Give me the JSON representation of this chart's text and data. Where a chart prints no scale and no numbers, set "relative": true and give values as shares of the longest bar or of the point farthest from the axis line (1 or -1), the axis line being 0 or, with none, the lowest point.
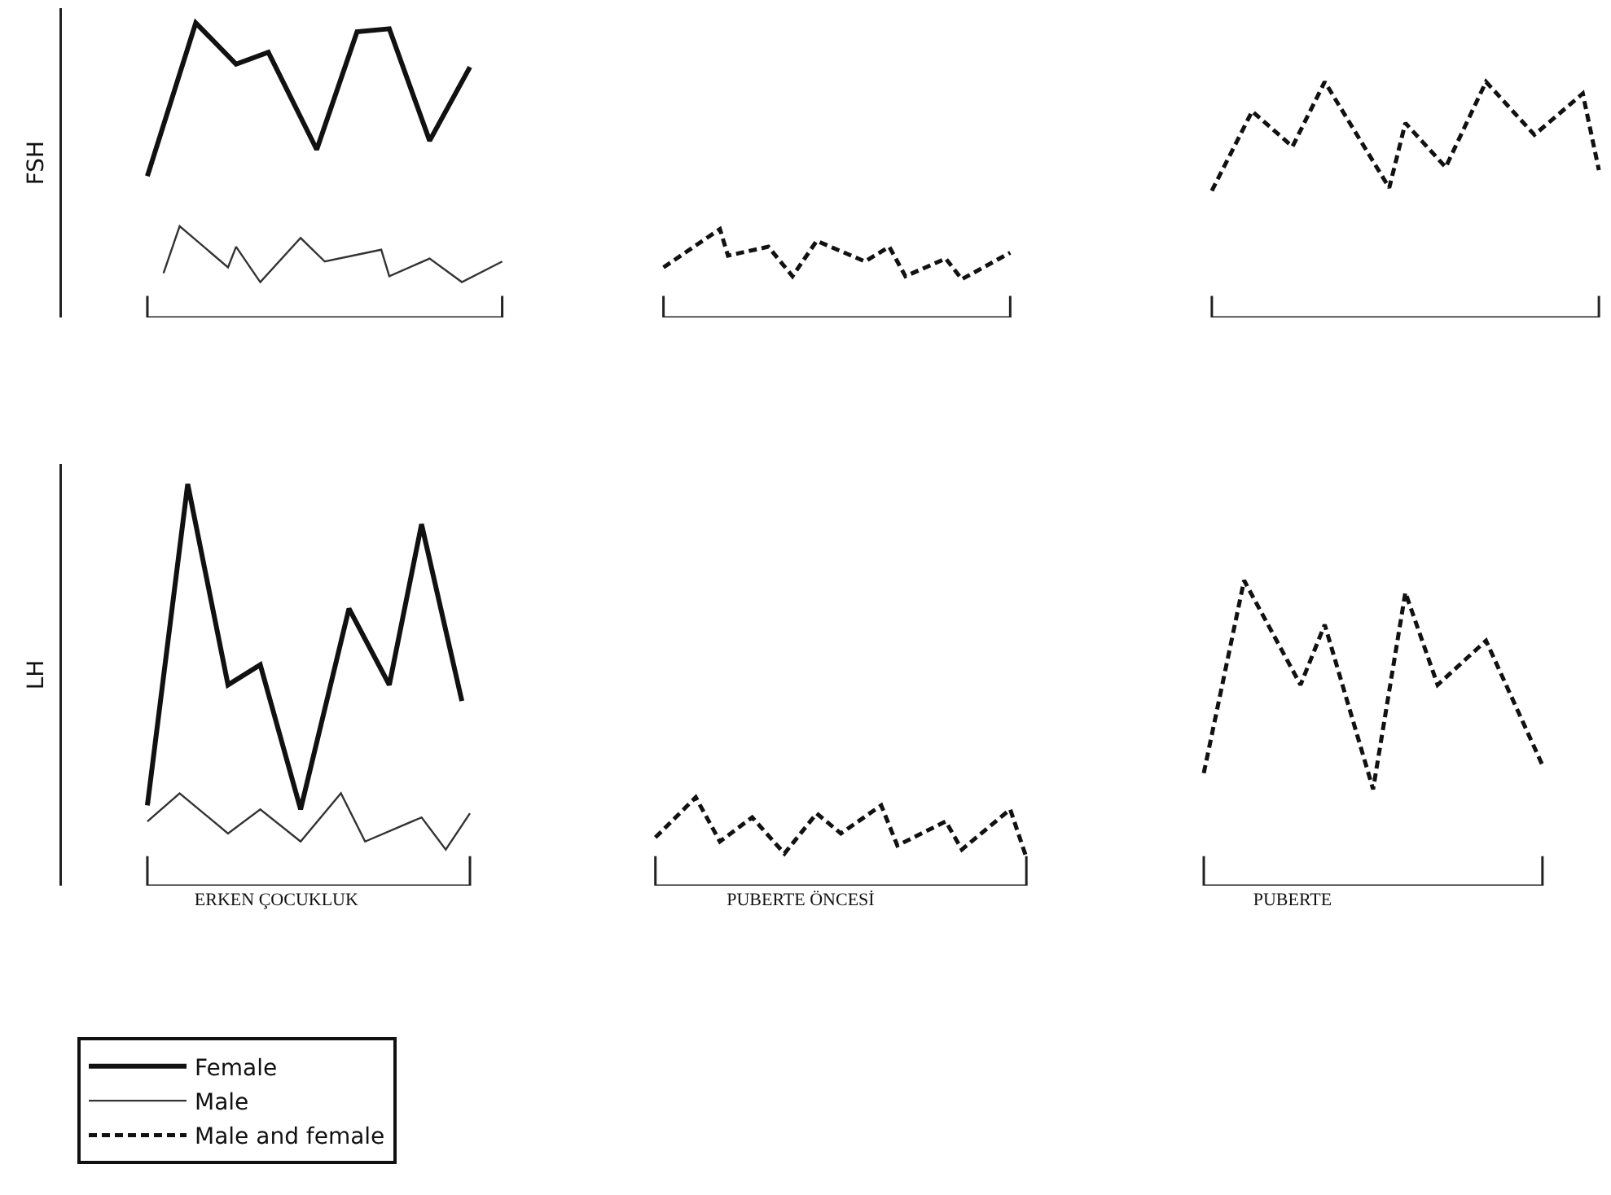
{
  "chart_data": [
    {
      "type": "line",
      "relative": true,
      "ylabel": "FSH",
      "tick_labels": false,
      "legend": false,
      "categories": [
        null,
        null,
        null,
        null,
        null,
        null,
        null,
        null,
        null,
        null,
        null,
        null,
        null,
        null,
        null,
        null,
        null,
        null,
        null,
        null,
        null,
        null,
        null,
        null,
        null,
        null,
        null,
        null,
        null,
        null,
        null,
        null,
        null,
        null,
        null,
        null,
        null,
        null,
        null,
        null,
        null,
        null,
        null,
        null,
        null,
        null,
        null,
        null,
        null,
        null,
        null,
        null,
        null,
        null,
        null,
        null,
        null,
        null,
        null,
        null,
        null,
        null,
        null,
        null,
        null,
        null,
        null,
        null,
        null,
        null,
        null,
        null,
        null,
        null,
        null,
        null,
        null,
        null,
        null,
        null,
        null,
        null,
        null,
        null,
        null,
        null,
        null,
        null,
        null,
        null,
        null,
        null,
        null,
        null,
        null,
        null,
        null,
        null,
        null,
        null,
        null,
        null,
        null,
        null,
        null,
        null,
        null,
        null,
        null,
        null,
        null,
        null,
        null,
        null,
        null,
        null,
        null,
        null,
        null,
        null,
        null,
        null,
        null,
        null,
        null,
        null,
        null,
        null,
        null,
        null,
        null,
        null,
        null,
        null,
        null,
        null,
        null,
        null,
        null,
        null,
        null,
        null,
        null,
        null,
        null,
        null,
        null,
        null,
        null,
        null,
        null,
        null,
        null,
        null,
        null,
        null,
        null,
        null,
        null,
        null,
        null,
        null,
        null,
        null,
        null,
        null,
        null,
        null,
        null,
        null,
        null,
        null,
        null,
        null,
        null,
        null,
        null,
        null,
        null,
        null,
        null,
        null,
        null,
        null,
        null,
        null,
        null,
        null,
        null,
        null,
        null,
        null
      ],
      "series": [
        {
          "color": "#111111",
          "line_style": "solid",
          "values": [
            null,
            null,
            null,
            null,
            null,
            null,
            null,
            null,
            null,
            null,
            0.48,
            null,
            null,
            null,
            null,
            null,
            1.0,
            null,
            null,
            null,
            null,
            0.86,
            null,
            null,
            null,
            0.9,
            null,
            null,
            null,
            null,
            null,
            0.57,
            null,
            null,
            null,
            null,
            0.97,
            null,
            null,
            null,
            0.98,
            null,
            null,
            null,
            null,
            0.6,
            null,
            null,
            null,
            null,
            0.85,
            null,
            null,
            null,
            null,
            null,
            null,
            null,
            null,
            null,
            null,
            null,
            null,
            null,
            null,
            null,
            null,
            null,
            null,
            null,
            null,
            null,
            null,
            null,
            null,
            null,
            null,
            null,
            null,
            null,
            null,
            null,
            null,
            null,
            null,
            null,
            null,
            null,
            null,
            null,
            null,
            null,
            null,
            null,
            null,
            null,
            null,
            null,
            null,
            null,
            null,
            null,
            null,
            null,
            null,
            null,
            null,
            null,
            null,
            null,
            null,
            null,
            null,
            null,
            null,
            null,
            null,
            null,
            null,
            null,
            null,
            null,
            null,
            null,
            null,
            null,
            null,
            null,
            null,
            null,
            null,
            null,
            null,
            null,
            null,
            null,
            null,
            null,
            null,
            null,
            null,
            null,
            null,
            null,
            null,
            null,
            null,
            null,
            null,
            null,
            null,
            null,
            null,
            null,
            null,
            null,
            null,
            null,
            null,
            null,
            null,
            null,
            null,
            null,
            null,
            null,
            null,
            null,
            null,
            null,
            null,
            null,
            null,
            null,
            null,
            null,
            null,
            null,
            null,
            null,
            null,
            null,
            null,
            null,
            null,
            null,
            null,
            null,
            null,
            null,
            null,
            null
          ]
        },
        {
          "color": "#333333",
          "line_style": "solid",
          "values": [
            null,
            null,
            null,
            null,
            null,
            null,
            null,
            null,
            null,
            null,
            null,
            null,
            0.15,
            null,
            0.31,
            null,
            null,
            null,
            null,
            null,
            0.17,
            0.24,
            null,
            null,
            0.12,
            null,
            null,
            null,
            null,
            0.27,
            null,
            null,
            0.19,
            null,
            null,
            null,
            null,
            null,
            null,
            0.23,
            0.14,
            null,
            null,
            null,
            null,
            0.2,
            null,
            null,
            null,
            0.12,
            null,
            null,
            null,
            null,
            0.19,
            null,
            null,
            null,
            null,
            null,
            null,
            null,
            null,
            null,
            null,
            null,
            null,
            null,
            null,
            null,
            null,
            null,
            null,
            null,
            null,
            null,
            null,
            null,
            null,
            null,
            null,
            null,
            null,
            null,
            null,
            null,
            null,
            null,
            null,
            null,
            null,
            null,
            null,
            null,
            null,
            null,
            null,
            null,
            null,
            null,
            null,
            null,
            null,
            null,
            null,
            null,
            null,
            null,
            null,
            null,
            null,
            null,
            null,
            null,
            null,
            null,
            null,
            null,
            null,
            null,
            null,
            null,
            null,
            null,
            null,
            null,
            null,
            null,
            null,
            null,
            null,
            null,
            null,
            null,
            null,
            null,
            null,
            null,
            null,
            null,
            null,
            null,
            null,
            null,
            null,
            null,
            null,
            null,
            null,
            null,
            null,
            null,
            null,
            null,
            null,
            null,
            null,
            null,
            null,
            null,
            null,
            null,
            null,
            null,
            null,
            null,
            null,
            null,
            null,
            null,
            null,
            null,
            null,
            null,
            null,
            null,
            null,
            null,
            null,
            null,
            null,
            null,
            null,
            null,
            null,
            null,
            null,
            null,
            null,
            null,
            null,
            null
          ]
        },
        {
          "color": "#111111",
          "line_style": "dashed",
          "values": [
            null,
            null,
            null,
            null,
            null,
            null,
            null,
            null,
            null,
            null,
            null,
            null,
            null,
            null,
            null,
            null,
            null,
            null,
            null,
            null,
            null,
            null,
            null,
            null,
            null,
            null,
            null,
            null,
            null,
            null,
            null,
            null,
            null,
            null,
            null,
            null,
            null,
            null,
            null,
            null,
            null,
            null,
            null,
            null,
            null,
            null,
            null,
            null,
            null,
            null,
            null,
            null,
            null,
            null,
            null,
            null,
            null,
            null,
            null,
            null,
            null,
            null,
            null,
            null,
            null,
            null,
            null,
            null,
            null,
            null,
            null,
            null,
            null,
            null,
            0.17,
            null,
            null,
            null,
            null,
            null,
            null,
            0.3,
            0.21,
            null,
            null,
            null,
            null,
            0.24,
            null,
            null,
            0.14,
            null,
            null,
            0.26,
            null,
            null,
            null,
            null,
            null,
            0.19,
            null,
            null,
            0.24,
            null,
            0.14,
            null,
            null,
            null,
            null,
            0.2,
            null,
            0.13,
            null,
            null,
            null,
            null,
            null,
            0.22,
            null,
            null,
            null,
            null,
            null,
            null,
            null,
            null,
            null,
            null,
            null,
            null,
            null,
            null,
            null,
            null,
            null,
            null,
            null,
            null,
            null,
            null,
            null,
            null,
            null,
            null,
            null,
            null,
            null,
            null,
            null,
            null,
            null,
            null,
            null,
            null,
            null,
            null,
            null,
            null,
            null,
            null,
            null,
            null,
            null,
            null,
            null,
            null,
            null,
            null,
            null,
            null,
            null,
            null,
            null,
            null,
            null,
            null,
            null,
            null,
            null,
            null,
            null,
            null,
            null,
            null,
            null,
            null,
            null,
            null,
            null,
            null,
            null,
            null
          ]
        },
        {
          "color": "#111111",
          "line_style": "dashed",
          "values": [
            null,
            null,
            null,
            null,
            null,
            null,
            null,
            null,
            null,
            null,
            null,
            null,
            null,
            null,
            null,
            null,
            null,
            null,
            null,
            null,
            null,
            null,
            null,
            null,
            null,
            null,
            null,
            null,
            null,
            null,
            null,
            null,
            null,
            null,
            null,
            null,
            null,
            null,
            null,
            null,
            null,
            null,
            null,
            null,
            null,
            null,
            null,
            null,
            null,
            null,
            null,
            null,
            null,
            null,
            null,
            null,
            null,
            null,
            null,
            null,
            null,
            null,
            null,
            null,
            null,
            null,
            null,
            null,
            null,
            null,
            null,
            null,
            null,
            null,
            null,
            null,
            null,
            null,
            null,
            null,
            null,
            null,
            null,
            null,
            null,
            null,
            null,
            null,
            null,
            null,
            null,
            null,
            null,
            null,
            null,
            null,
            null,
            null,
            null,
            null,
            null,
            null,
            null,
            null,
            null,
            null,
            null,
            null,
            null,
            null,
            null,
            null,
            null,
            null,
            null,
            null,
            null,
            null,
            null,
            null,
            null,
            null,
            null,
            null,
            null,
            null,
            null,
            null,
            null,
            null,
            null,
            null,
            null,
            null,
            null,
            null,
            null,
            null,
            null,
            null,
            null,
            null,
            0.43,
            null,
            null,
            null,
            null,
            0.7,
            null,
            null,
            null,
            null,
            0.58,
            null,
            null,
            null,
            0.8,
            null,
            null,
            null,
            null,
            null,
            null,
            null,
            0.44,
            null,
            0.66,
            null,
            null,
            null,
            null,
            0.51,
            null,
            null,
            null,
            null,
            0.8,
            null,
            null,
            null,
            null,
            null,
            0.62,
            null,
            null,
            null,
            null,
            null,
            0.76,
            null,
            0.5,
            null
          ]
        }
      ]
    },
    {
      "type": "line",
      "relative": true,
      "ylabel": "LH",
      "tick_labels": "x",
      "legend": "bottom left",
      "categories": [
        null,
        null,
        null,
        null,
        null,
        null,
        null,
        null,
        null,
        null,
        null,
        null,
        null,
        null,
        null,
        null,
        null,
        null,
        null,
        null,
        null,
        null,
        null,
        null,
        null,
        null,
        "ERKEN ÇOCUKLUK",
        null,
        null,
        null,
        null,
        null,
        null,
        null,
        null,
        null,
        null,
        null,
        null,
        null,
        null,
        null,
        null,
        null,
        null,
        null,
        null,
        null,
        null,
        null,
        null,
        null,
        null,
        null,
        null,
        null,
        null,
        null,
        null,
        null,
        null,
        null,
        null,
        null,
        null,
        null,
        null,
        null,
        null,
        null,
        null,
        null,
        null,
        null,
        null,
        null,
        null,
        null,
        null,
        null,
        null,
        null,
        null,
        null,
        null,
        null,
        null,
        null,
        null,
        null,
        null,
        "PUBERTE ÖNCESİ",
        null,
        null,
        null,
        null,
        null,
        null,
        null,
        null,
        null,
        null,
        null,
        null,
        null,
        null,
        null,
        null,
        null,
        null,
        null,
        null,
        null,
        null,
        null,
        null,
        null,
        null,
        null,
        null,
        null,
        null,
        null,
        null,
        null,
        null,
        null,
        null,
        null,
        null,
        null,
        null,
        null,
        null,
        null,
        null,
        null,
        null,
        null,
        null,
        null,
        null,
        null,
        null,
        null,
        null,
        null,
        null,
        null,
        null,
        null,
        null,
        "PUBERTE",
        null,
        null,
        null,
        null,
        null,
        null,
        null,
        null,
        null,
        null,
        null,
        null,
        null,
        null,
        null,
        null,
        null,
        null,
        null,
        null,
        null,
        null,
        null,
        null,
        null,
        null,
        null,
        null,
        null,
        null,
        null,
        null,
        null,
        null,
        null,
        null,
        null,
        null,
        null
      ],
      "series": [
        {
          "name": "Female",
          "color": "#111111",
          "line_style": "solid",
          "values": [
            null,
            null,
            null,
            null,
            null,
            null,
            null,
            null,
            null,
            null,
            0.2,
            null,
            null,
            null,
            null,
            1.0,
            null,
            null,
            null,
            null,
            0.5,
            null,
            null,
            null,
            0.55,
            null,
            null,
            null,
            null,
            0.19,
            null,
            null,
            null,
            null,
            null,
            0.69,
            null,
            null,
            null,
            null,
            0.5,
            null,
            null,
            null,
            0.9,
            null,
            null,
            null,
            null,
            0.46,
            null,
            null,
            null,
            null,
            null,
            null,
            null,
            null,
            null,
            null,
            null,
            null,
            null,
            null,
            null,
            null,
            null,
            null,
            null,
            null,
            null,
            null,
            null,
            null,
            null,
            null,
            null,
            null,
            null,
            null,
            null,
            null,
            null,
            null,
            null,
            null,
            null,
            null,
            null,
            null,
            null,
            null,
            null,
            null,
            null,
            null,
            null,
            null,
            null,
            null,
            null,
            null,
            null,
            null,
            null,
            null,
            null,
            null,
            null,
            null,
            null,
            null,
            null,
            null,
            null,
            null,
            null,
            null,
            null,
            null,
            null,
            null,
            null,
            null,
            null,
            null,
            null,
            null,
            null,
            null,
            null,
            null,
            null,
            null,
            null,
            null,
            null,
            null,
            null,
            null,
            null,
            null,
            null,
            null,
            null,
            null,
            null,
            null,
            null,
            null,
            null,
            null,
            null,
            null,
            null,
            null,
            null,
            null,
            null,
            null,
            null,
            null,
            null,
            null,
            null,
            null,
            null,
            null,
            null,
            null,
            null,
            null,
            null,
            null,
            null,
            null,
            null,
            null,
            null,
            null,
            null,
            null,
            null,
            null,
            null,
            null,
            null,
            null,
            null,
            null,
            null,
            null
          ]
        },
        {
          "name": "Male",
          "color": "#333333",
          "line_style": "solid",
          "values": [
            null,
            null,
            null,
            null,
            null,
            null,
            null,
            null,
            null,
            null,
            0.16,
            null,
            null,
            null,
            0.23,
            null,
            null,
            null,
            null,
            null,
            0.13,
            null,
            null,
            null,
            0.19,
            null,
            null,
            null,
            null,
            0.11,
            null,
            null,
            null,
            null,
            0.23,
            null,
            null,
            0.11,
            null,
            null,
            null,
            null,
            null,
            null,
            0.17,
            null,
            null,
            0.09,
            null,
            null,
            0.18,
            null,
            null,
            null,
            null,
            null,
            null,
            null,
            null,
            null,
            null,
            null,
            null,
            null,
            null,
            null,
            null,
            null,
            null,
            null,
            null,
            null,
            null,
            null,
            null,
            null,
            null,
            null,
            null,
            null,
            null,
            null,
            null,
            null,
            null,
            null,
            null,
            null,
            null,
            null,
            null,
            null,
            null,
            null,
            null,
            null,
            null,
            null,
            null,
            null,
            null,
            null,
            null,
            null,
            null,
            null,
            null,
            null,
            null,
            null,
            null,
            null,
            null,
            null,
            null,
            null,
            null,
            null,
            null,
            null,
            null,
            null,
            null,
            null,
            null,
            null,
            null,
            null,
            null,
            null,
            null,
            null,
            null,
            null,
            null,
            null,
            null,
            null,
            null,
            null,
            null,
            null,
            null,
            null,
            null,
            null,
            null,
            null,
            null,
            null,
            null,
            null,
            null,
            null,
            null,
            null,
            null,
            null,
            null,
            null,
            null,
            null,
            null,
            null,
            null,
            null,
            null,
            null,
            null,
            null,
            null,
            null,
            null,
            null,
            null,
            null,
            null,
            null,
            null,
            null,
            null,
            null,
            null,
            null,
            null,
            null,
            null,
            null,
            null,
            null,
            null,
            null
          ]
        },
        {
          "name": "Male and female",
          "color": "#111111",
          "line_style": "dashed",
          "values": [
            null,
            null,
            null,
            null,
            null,
            null,
            null,
            null,
            null,
            null,
            null,
            null,
            null,
            null,
            null,
            null,
            null,
            null,
            null,
            null,
            null,
            null,
            null,
            null,
            null,
            null,
            null,
            null,
            null,
            null,
            null,
            null,
            null,
            null,
            null,
            null,
            null,
            null,
            null,
            null,
            null,
            null,
            null,
            null,
            null,
            null,
            null,
            null,
            null,
            null,
            null,
            null,
            null,
            null,
            null,
            null,
            null,
            null,
            null,
            null,
            null,
            null,
            null,
            null,
            null,
            null,
            null,
            null,
            null,
            null,
            null,
            null,
            null,
            0.12,
            null,
            null,
            null,
            null,
            0.22,
            null,
            null,
            0.11,
            null,
            null,
            null,
            0.17,
            null,
            null,
            null,
            0.08,
            null,
            null,
            null,
            0.18,
            null,
            null,
            0.13,
            null,
            null,
            null,
            null,
            0.2,
            null,
            0.1,
            null,
            null,
            null,
            null,
            null,
            0.16,
            null,
            0.09,
            null,
            null,
            null,
            null,
            null,
            0.19,
            null,
            0.07,
            null,
            null,
            null,
            null,
            null,
            null,
            null,
            null,
            null,
            null,
            null,
            null,
            null,
            null,
            null,
            null,
            null,
            null,
            null,
            null,
            null,
            null,
            null,
            null,
            null,
            null,
            null,
            null,
            null,
            null,
            null,
            null,
            null,
            null,
            null,
            null,
            null,
            null,
            null,
            null,
            null,
            null,
            null,
            null,
            null,
            null,
            null,
            null,
            null,
            null,
            null,
            null,
            null,
            null,
            null,
            null,
            null,
            null,
            null,
            null,
            null,
            null,
            null,
            null,
            null,
            null,
            null,
            null,
            null,
            null,
            null,
            null
          ]
        },
        {
          "color": "#111111",
          "line_style": "dashed",
          "values": [
            null,
            null,
            null,
            null,
            null,
            null,
            null,
            null,
            null,
            null,
            null,
            null,
            null,
            null,
            null,
            null,
            null,
            null,
            null,
            null,
            null,
            null,
            null,
            null,
            null,
            null,
            null,
            null,
            null,
            null,
            null,
            null,
            null,
            null,
            null,
            null,
            null,
            null,
            null,
            null,
            null,
            null,
            null,
            null,
            null,
            null,
            null,
            null,
            null,
            null,
            null,
            null,
            null,
            null,
            null,
            null,
            null,
            null,
            null,
            null,
            null,
            null,
            null,
            null,
            null,
            null,
            null,
            null,
            null,
            null,
            null,
            null,
            null,
            null,
            null,
            null,
            null,
            null,
            null,
            null,
            null,
            null,
            null,
            null,
            null,
            null,
            null,
            null,
            null,
            null,
            null,
            null,
            null,
            null,
            null,
            null,
            null,
            null,
            null,
            null,
            null,
            null,
            null,
            null,
            null,
            null,
            null,
            null,
            null,
            null,
            null,
            null,
            null,
            null,
            null,
            null,
            null,
            null,
            null,
            null,
            null,
            null,
            null,
            null,
            null,
            null,
            null,
            null,
            null,
            null,
            null,
            null,
            null,
            null,
            null,
            null,
            null,
            null,
            null,
            null,
            null,
            0.28,
            null,
            null,
            null,
            null,
            0.76,
            null,
            null,
            null,
            null,
            null,
            null,
            0.5,
            null,
            null,
            0.65,
            null,
            null,
            null,
            null,
            null,
            0.24,
            null,
            null,
            null,
            0.73,
            null,
            null,
            null,
            0.5,
            null,
            null,
            null,
            null,
            null,
            0.61,
            null,
            null,
            null,
            null,
            null,
            null,
            0.3,
            null,
            null,
            null,
            null,
            null,
            null,
            null,
            null
          ]
        }
      ]
    }
  ]
}
